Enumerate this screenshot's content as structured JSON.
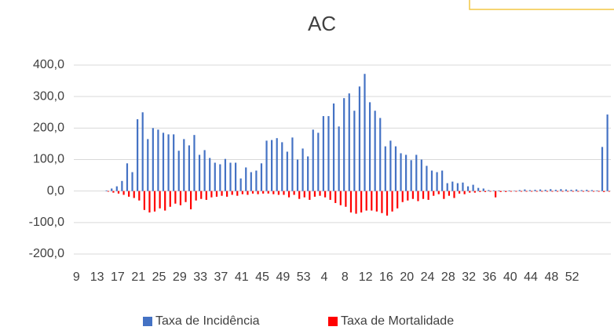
{
  "chart_data": {
    "type": "bar",
    "title": "AC",
    "categories": [
      "9",
      null,
      null,
      null,
      "13",
      null,
      null,
      null,
      "17",
      null,
      null,
      null,
      "21",
      null,
      null,
      null,
      "25",
      null,
      null,
      null,
      "29",
      null,
      null,
      null,
      "33",
      null,
      null,
      null,
      "37",
      null,
      null,
      null,
      "41",
      null,
      null,
      null,
      "45",
      null,
      null,
      null,
      "49",
      null,
      null,
      null,
      "53",
      null,
      null,
      null,
      "4",
      null,
      null,
      null,
      "8",
      null,
      null,
      null,
      "12",
      null,
      null,
      null,
      "16",
      null,
      null,
      null,
      "20",
      null,
      null,
      null,
      "24",
      null,
      null,
      null,
      "28",
      null,
      null,
      null,
      "32",
      null,
      null,
      null,
      "36",
      null,
      null,
      null,
      "40",
      null,
      null,
      null,
      "44",
      null,
      null,
      null,
      "48",
      null,
      null,
      null,
      "52",
      null,
      null,
      null,
      null,
      null,
      null,
      null
    ],
    "series": [
      {
        "name": "Taxa de Incidência",
        "color": "#4472c4",
        "values": [
          null,
          null,
          null,
          null,
          null,
          null,
          2,
          8,
          15,
          32,
          88,
          60,
          228,
          250,
          165,
          200,
          195,
          185,
          180,
          180,
          128,
          165,
          145,
          178,
          115,
          130,
          105,
          90,
          85,
          102,
          90,
          90,
          40,
          75,
          60,
          65,
          88,
          160,
          162,
          168,
          155,
          125,
          170,
          100,
          135,
          110,
          195,
          185,
          238,
          238,
          278,
          205,
          295,
          310,
          255,
          332,
          372,
          282,
          255,
          232,
          142,
          160,
          142,
          120,
          115,
          98,
          115,
          100,
          80,
          65,
          60,
          65,
          25,
          30,
          25,
          27,
          15,
          20,
          10,
          8,
          3,
          2,
          2,
          1,
          2,
          1,
          3,
          5,
          3,
          4,
          5,
          4,
          6,
          4,
          6,
          5,
          4,
          5,
          3,
          4,
          3,
          2,
          140,
          243
        ]
      },
      {
        "name": "Taxa de Mortalidade",
        "color": "#ff0000",
        "values": [
          null,
          null,
          null,
          null,
          null,
          null,
          -2,
          -5,
          -8,
          -12,
          -18,
          -22,
          -30,
          -60,
          -68,
          -65,
          -55,
          -62,
          -50,
          -40,
          -45,
          -35,
          -58,
          -30,
          -25,
          -28,
          -20,
          -18,
          -15,
          -18,
          -12,
          -15,
          -10,
          -12,
          -8,
          -10,
          -8,
          -8,
          -10,
          -12,
          -12,
          -20,
          -12,
          -25,
          -20,
          -28,
          -18,
          -15,
          -20,
          -28,
          -38,
          -45,
          -50,
          -68,
          -72,
          -68,
          -62,
          -62,
          -65,
          -70,
          -78,
          -65,
          -55,
          -35,
          -30,
          -25,
          -32,
          -25,
          -28,
          -15,
          -10,
          -25,
          -15,
          -22,
          -8,
          -10,
          -5,
          -5,
          -3,
          -3,
          -2,
          -20,
          -3,
          -3,
          -2,
          -2,
          -2,
          -2,
          -2,
          -2,
          -2,
          -2,
          -2,
          -2,
          -2,
          -2,
          -2,
          -2,
          -2,
          -2,
          -2,
          -2,
          -3,
          -2
        ]
      }
    ],
    "ylim": [
      -200,
      400
    ],
    "yticks": [
      {
        "value": -200,
        "label": "-200,0"
      },
      {
        "value": -100,
        "label": "-100,0"
      },
      {
        "value": 0,
        "label": "0,0"
      },
      {
        "value": 100,
        "label": "100,0"
      },
      {
        "value": 200,
        "label": "200,0"
      },
      {
        "value": 300,
        "label": "300,0"
      },
      {
        "value": 400,
        "label": "400,0"
      }
    ],
    "grid": true,
    "legend": "bottom"
  }
}
